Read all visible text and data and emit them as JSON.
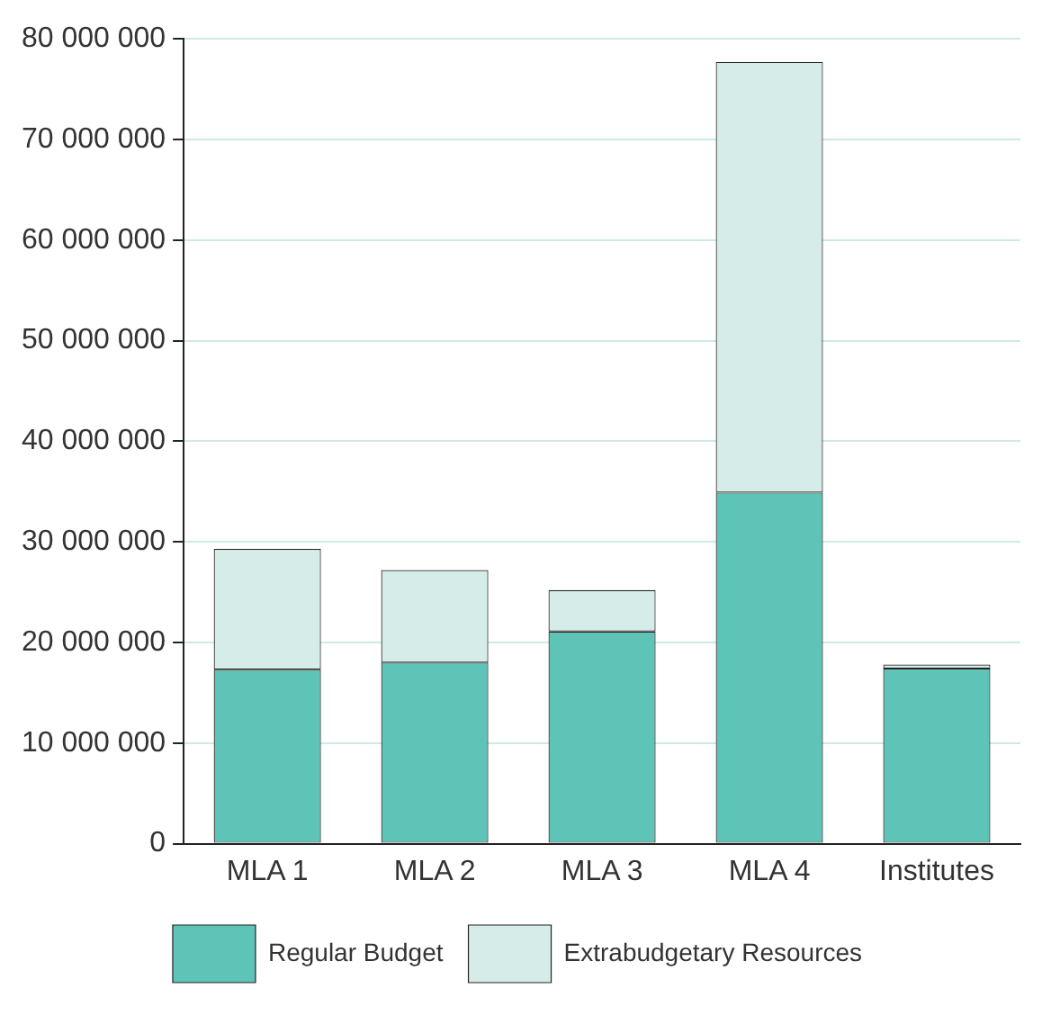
{
  "chart_data": {
    "type": "bar",
    "categories": [
      "MLA 1",
      "MLA 2",
      "MLA 3",
      "MLA 4",
      "Institutes"
    ],
    "stacked": true,
    "series": [
      {
        "name": "Regular Budget",
        "color": "#5fc4b8",
        "values": [
          17300000,
          18000000,
          21100000,
          34900000,
          17400000
        ]
      },
      {
        "name": "Extrabudgetary Resources",
        "color": "#d5ece8",
        "values": [
          12000000,
          9200000,
          4100000,
          42800000,
          400000
        ]
      }
    ],
    "ylim": [
      0,
      80000000
    ],
    "yticks": [
      0,
      {
        "value": 10000000,
        "label": "10 000 000"
      },
      {
        "value": 20000000,
        "label": "20 000 000"
      },
      {
        "value": 30000000,
        "label": "30 000 000"
      },
      {
        "value": 40000000,
        "label": "40 000 000"
      },
      {
        "value": 50000000,
        "label": "50 000 000"
      },
      {
        "value": 60000000,
        "label": "60 000 000"
      },
      {
        "value": 70000000,
        "label": "70 000 000"
      },
      {
        "value": 80000000,
        "label": "80 000 000"
      }
    ],
    "grid": "y",
    "legend": "bottom"
  }
}
